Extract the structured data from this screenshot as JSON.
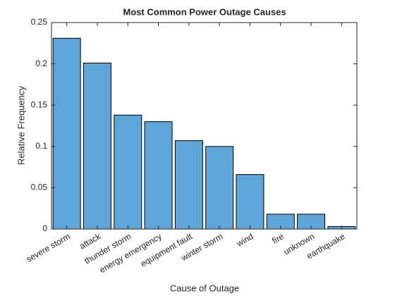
{
  "chart_data": {
    "type": "bar",
    "title": "Most Common Power Outage Causes",
    "x_label": "Cause of Outage",
    "y_label": "Relative Frequency",
    "categories": [
      "severe storm",
      "attack",
      "thunder storm",
      "energy emergency",
      "equipment fault",
      "winter storm",
      "wind",
      "fire",
      "unknown",
      "earthquake"
    ],
    "values": [
      0.231,
      0.201,
      0.138,
      0.13,
      0.107,
      0.1,
      0.066,
      0.018,
      0.018,
      0.003
    ],
    "color": "#5ea6d9",
    "ylim": [
      0,
      0.25
    ],
    "yticks": [
      0,
      0.05,
      0.1,
      0.15,
      0.2,
      0.25
    ],
    "grid": false
  }
}
